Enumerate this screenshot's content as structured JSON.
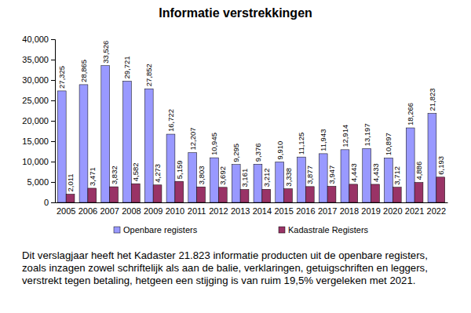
{
  "chart_data": {
    "type": "bar",
    "title": "Informatie verstrekkingen",
    "categories": [
      "2005",
      "2006",
      "2007",
      "2008",
      "2009",
      "2010",
      "2011",
      "2012",
      "2013",
      "2014",
      "2015",
      "2016",
      "2017",
      "2018",
      "2019",
      "2020",
      "2021",
      "2022"
    ],
    "series": [
      {
        "name": "Openbare registers",
        "color": "#9999ff",
        "values": [
          27325,
          28865,
          33526,
          29721,
          27852,
          16722,
          12207,
          10945,
          9295,
          9376,
          9910,
          11125,
          11943,
          12914,
          13197,
          10897,
          18266,
          21823
        ],
        "value_labels": [
          "27,325",
          "28,865",
          "33,526",
          "29,721",
          "27,852",
          "16,722",
          "12,207",
          "10,945",
          "9,295",
          "9,376",
          "9,910",
          "11,125",
          "11,943",
          "12,914",
          "13,197",
          "10,897",
          "18,266",
          "21,823"
        ]
      },
      {
        "name": "Kadastrale Registers",
        "color": "#993366",
        "values": [
          2011,
          3471,
          3832,
          4582,
          4273,
          5159,
          3803,
          3692,
          3161,
          3212,
          3338,
          3877,
          3947,
          4443,
          4433,
          3712,
          4886,
          6193
        ],
        "value_labels": [
          "2,011",
          "3,471",
          "3,832",
          "4,582",
          "4,273",
          "5,159",
          "3,803",
          "3,692",
          "3,161",
          "3,212",
          "3,338",
          "3,877",
          "3,947",
          "4,443",
          "4,433",
          "3,712",
          "4,886",
          "6,193"
        ]
      }
    ],
    "ylim": [
      0,
      40000
    ],
    "yticks": [
      0,
      {
        "value": 5000,
        "label": "5,000"
      },
      {
        "value": 10000,
        "label": "10,000"
      },
      {
        "value": 15000,
        "label": "15,000"
      },
      {
        "value": 20000,
        "label": "20,000"
      },
      {
        "value": 25000,
        "label": "25,000"
      },
      {
        "value": 30000,
        "label": "30,000"
      },
      {
        "value": 35000,
        "label": "35,000"
      },
      {
        "value": 40000,
        "label": "40,000"
      }
    ],
    "grid": false,
    "legend": "bottom",
    "data_labels": true,
    "annotations": [
      "Dit verslagjaar heeft het Kadaster 21.823 informatie producten uit de openbare registers, zoals inzagen zowel schriftelijk als aan de balie, verklaringen, getuigschriften en leggers, verstrekt tegen betaling, hetgeen een stijging is van ruim 19,5% vergeleken met 2021."
    ]
  }
}
